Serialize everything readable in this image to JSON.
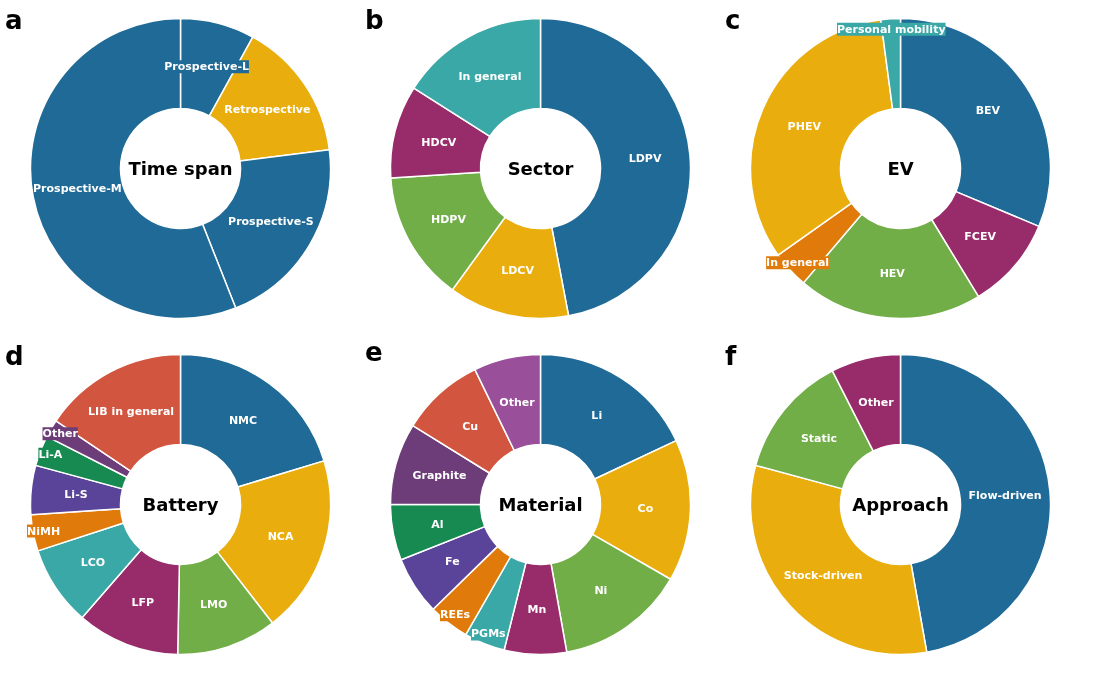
{
  "chart_data": [
    {
      "type": "donut",
      "title": "Time span",
      "annotations": [
        "a"
      ],
      "categories": [
        "Prospective-L",
        "Retrospective",
        "Prospective-S",
        "Prospective-M"
      ],
      "values": [
        8,
        15,
        21,
        56
      ],
      "colors": [
        "#1f6a96",
        "#e9ae0e",
        "#1f6a96",
        "#1f6a96"
      ]
    },
    {
      "type": "donut",
      "title": "Sector",
      "annotations": [
        "b"
      ],
      "categories": [
        "LDPV",
        "LDCV",
        "HDPV",
        "HDCV",
        "In general"
      ],
      "values": [
        47,
        13,
        14,
        10,
        16
      ],
      "colors": [
        "#1f6a96",
        "#e9ae0e",
        "#72ae48",
        "#982c6b",
        "#3aa8a6"
      ]
    },
    {
      "type": "donut",
      "title": "EV",
      "annotations": [
        "c"
      ],
      "categories": [
        "BEV",
        "FCEV",
        "HEV",
        "In general",
        "PHEV",
        "Personal mobility"
      ],
      "values": [
        31.3,
        10,
        19.9,
        4,
        32.7,
        2.1
      ],
      "colors": [
        "#1f6a96",
        "#982c6b",
        "#72ae48",
        "#e07b0b",
        "#e9ae0e",
        "#3aa8a6"
      ]
    },
    {
      "type": "donut",
      "title": "Battery",
      "annotations": [
        "d"
      ],
      "categories": [
        "NMC",
        "NCA",
        "LMO",
        "LFP",
        "LCO",
        "NiMH",
        "Li-S",
        "Li-A",
        "Other",
        "LIB in general"
      ],
      "values": [
        20.3,
        19.2,
        10.8,
        11.1,
        8.6,
        3.9,
        5.3,
        3.3,
        1.9,
        15.6
      ],
      "colors": [
        "#1f6a96",
        "#e9ae0e",
        "#72ae48",
        "#982c6b",
        "#3aa8a6",
        "#e07b0b",
        "#5a449a",
        "#178a52",
        "#6c3d78",
        "#d2563f"
      ]
    },
    {
      "type": "donut",
      "title": "Material",
      "annotations": [
        "e"
      ],
      "categories": [
        "Li",
        "Co",
        "Ni",
        "Mn",
        "PGMs",
        "REEs",
        "Fe",
        "Al",
        "Graphite",
        "Cu",
        "Other"
      ],
      "values": [
        18,
        15.3,
        13.9,
        6.7,
        4.4,
        4.4,
        6.3,
        6,
        8.8,
        9,
        7.2
      ],
      "colors": [
        "#1f6a96",
        "#e9ae0e",
        "#72ae48",
        "#982c6b",
        "#3aa8a6",
        "#e07b0b",
        "#5a449a",
        "#178a52",
        "#6c3d78",
        "#d2563f",
        "#9a4f9a"
      ]
    },
    {
      "type": "donut",
      "title": "Approach",
      "annotations": [
        "f"
      ],
      "categories": [
        "Flow-driven",
        "Stock-driven",
        "Static",
        "Other"
      ],
      "values": [
        47.2,
        32,
        13.3,
        7.5
      ],
      "colors": [
        "#1f6a96",
        "#e9ae0e",
        "#72ae48",
        "#982c6b"
      ]
    }
  ]
}
